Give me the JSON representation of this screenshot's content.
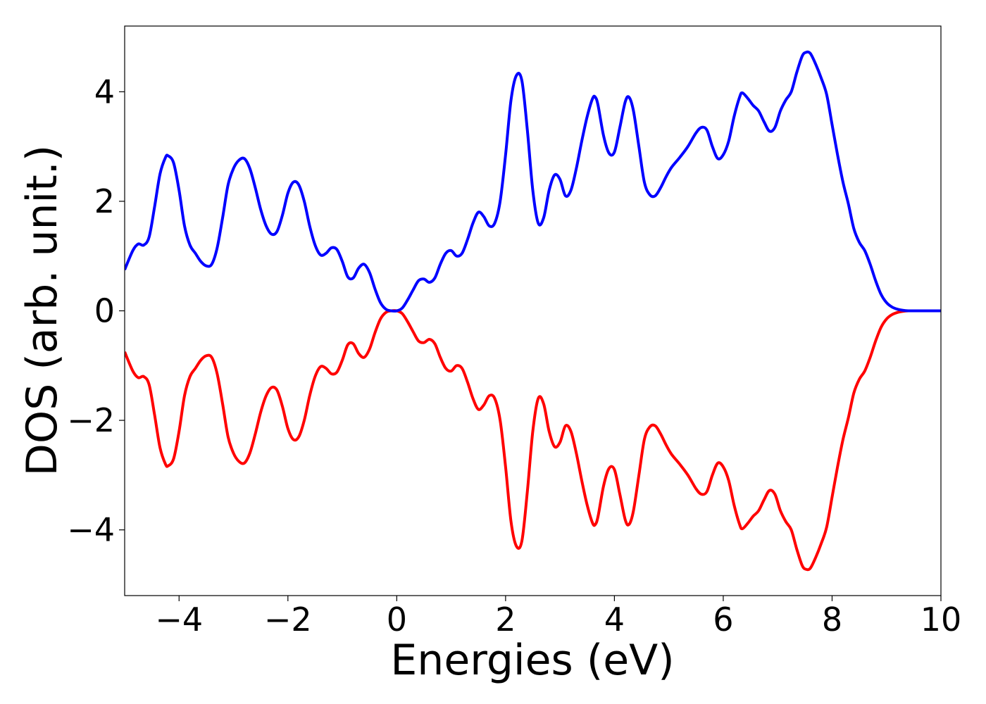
{
  "chart_data": {
    "type": "line",
    "title": "",
    "xlabel": "Energies (eV)",
    "ylabel": "DOS (arb. unit.)",
    "xlim": [
      -5,
      10
    ],
    "ylim": [
      -5.2,
      5.2
    ],
    "xticks": [
      -4,
      -2,
      0,
      2,
      4,
      6,
      8,
      10
    ],
    "yticks": [
      -4,
      -2,
      0,
      2,
      4
    ],
    "xtick_labels": [
      "−4",
      "−2",
      "0",
      "2",
      "4",
      "6",
      "8",
      "10"
    ],
    "ytick_labels": [
      "−4",
      "−2",
      "0",
      "2",
      "4"
    ],
    "grid": false,
    "legend": "none",
    "series": [
      {
        "color": "#0000ff",
        "x": [
          -5.0,
          -4.85,
          -4.75,
          -4.65,
          -4.55,
          -4.45,
          -4.35,
          -4.25,
          -4.2,
          -4.1,
          -4.0,
          -3.9,
          -3.8,
          -3.7,
          -3.6,
          -3.5,
          -3.4,
          -3.3,
          -3.2,
          -3.1,
          -3.0,
          -2.9,
          -2.8,
          -2.7,
          -2.6,
          -2.5,
          -2.4,
          -2.3,
          -2.2,
          -2.1,
          -2.0,
          -1.9,
          -1.8,
          -1.7,
          -1.6,
          -1.5,
          -1.4,
          -1.3,
          -1.2,
          -1.1,
          -1.0,
          -0.9,
          -0.8,
          -0.7,
          -0.6,
          -0.5,
          -0.4,
          -0.3,
          -0.2,
          -0.1,
          0.0,
          0.1,
          0.2,
          0.3,
          0.4,
          0.5,
          0.6,
          0.7,
          0.8,
          0.9,
          1.0,
          1.1,
          1.2,
          1.3,
          1.4,
          1.5,
          1.6,
          1.7,
          1.8,
          1.9,
          2.0,
          2.1,
          2.2,
          2.3,
          2.4,
          2.5,
          2.6,
          2.7,
          2.8,
          2.9,
          3.0,
          3.1,
          3.2,
          3.3,
          3.4,
          3.5,
          3.6,
          3.65,
          3.7,
          3.8,
          3.9,
          4.0,
          4.1,
          4.2,
          4.27,
          4.35,
          4.45,
          4.55,
          4.65,
          4.75,
          4.85,
          4.95,
          5.05,
          5.2,
          5.35,
          5.5,
          5.6,
          5.7,
          5.8,
          5.9,
          6.0,
          6.1,
          6.2,
          6.3,
          6.35,
          6.45,
          6.55,
          6.65,
          6.75,
          6.85,
          6.95,
          7.05,
          7.15,
          7.25,
          7.35,
          7.45,
          7.52,
          7.6,
          7.7,
          7.8,
          7.9,
          8.0,
          8.1,
          8.2,
          8.3,
          8.4,
          8.5,
          8.6,
          8.7,
          8.8,
          8.9,
          9.0,
          9.1,
          9.2,
          9.3,
          9.4,
          9.5,
          9.7,
          10.0
        ],
        "values": [
          0.75,
          1.1,
          1.22,
          1.2,
          1.35,
          1.9,
          2.5,
          2.8,
          2.83,
          2.7,
          2.2,
          1.55,
          1.2,
          1.05,
          0.9,
          0.82,
          0.85,
          1.15,
          1.7,
          2.3,
          2.6,
          2.75,
          2.78,
          2.6,
          2.25,
          1.85,
          1.55,
          1.4,
          1.45,
          1.75,
          2.15,
          2.35,
          2.3,
          2.0,
          1.55,
          1.2,
          1.02,
          1.05,
          1.15,
          1.12,
          0.9,
          0.62,
          0.6,
          0.78,
          0.85,
          0.7,
          0.4,
          0.15,
          0.03,
          0.0,
          0.0,
          0.05,
          0.2,
          0.38,
          0.55,
          0.58,
          0.52,
          0.6,
          0.85,
          1.05,
          1.1,
          1.0,
          1.05,
          1.3,
          1.6,
          1.8,
          1.72,
          1.55,
          1.6,
          2.0,
          2.85,
          3.85,
          4.3,
          4.2,
          3.3,
          2.2,
          1.6,
          1.7,
          2.2,
          2.48,
          2.4,
          2.1,
          2.2,
          2.6,
          3.1,
          3.55,
          3.88,
          3.9,
          3.75,
          3.2,
          2.88,
          2.9,
          3.35,
          3.82,
          3.9,
          3.65,
          3.0,
          2.35,
          2.12,
          2.1,
          2.25,
          2.45,
          2.62,
          2.8,
          3.0,
          3.25,
          3.35,
          3.3,
          3.0,
          2.78,
          2.85,
          3.1,
          3.55,
          3.9,
          3.98,
          3.88,
          3.75,
          3.65,
          3.45,
          3.28,
          3.35,
          3.65,
          3.85,
          4.0,
          4.35,
          4.65,
          4.72,
          4.7,
          4.5,
          4.25,
          3.95,
          3.4,
          2.85,
          2.35,
          1.95,
          1.5,
          1.25,
          1.1,
          0.85,
          0.55,
          0.3,
          0.15,
          0.07,
          0.03,
          0.01,
          0.0,
          0.0,
          0.0,
          0.0
        ]
      },
      {
        "color": "#ff0000",
        "x": [
          -5.0,
          -4.85,
          -4.75,
          -4.65,
          -4.55,
          -4.45,
          -4.35,
          -4.25,
          -4.2,
          -4.1,
          -4.0,
          -3.9,
          -3.8,
          -3.7,
          -3.6,
          -3.5,
          -3.4,
          -3.3,
          -3.2,
          -3.1,
          -3.0,
          -2.9,
          -2.8,
          -2.7,
          -2.6,
          -2.5,
          -2.4,
          -2.3,
          -2.2,
          -2.1,
          -2.0,
          -1.9,
          -1.8,
          -1.7,
          -1.6,
          -1.5,
          -1.4,
          -1.3,
          -1.2,
          -1.1,
          -1.0,
          -0.9,
          -0.8,
          -0.7,
          -0.6,
          -0.5,
          -0.4,
          -0.3,
          -0.2,
          -0.1,
          0.0,
          0.1,
          0.2,
          0.3,
          0.4,
          0.5,
          0.6,
          0.7,
          0.8,
          0.9,
          1.0,
          1.1,
          1.2,
          1.3,
          1.4,
          1.5,
          1.6,
          1.7,
          1.8,
          1.9,
          2.0,
          2.1,
          2.2,
          2.3,
          2.4,
          2.5,
          2.6,
          2.7,
          2.8,
          2.9,
          3.0,
          3.1,
          3.2,
          3.3,
          3.4,
          3.5,
          3.6,
          3.65,
          3.7,
          3.8,
          3.9,
          4.0,
          4.1,
          4.2,
          4.27,
          4.35,
          4.45,
          4.55,
          4.65,
          4.75,
          4.85,
          4.95,
          5.05,
          5.2,
          5.35,
          5.5,
          5.6,
          5.7,
          5.8,
          5.9,
          6.0,
          6.1,
          6.2,
          6.3,
          6.35,
          6.45,
          6.55,
          6.65,
          6.75,
          6.85,
          6.95,
          7.05,
          7.15,
          7.25,
          7.35,
          7.45,
          7.52,
          7.6,
          7.7,
          7.8,
          7.9,
          8.0,
          8.1,
          8.2,
          8.3,
          8.4,
          8.5,
          8.6,
          8.7,
          8.8,
          8.9,
          9.0,
          9.1,
          9.2,
          9.3,
          9.4,
          9.5,
          9.7,
          10.0
        ],
        "values": [
          -0.75,
          -1.1,
          -1.22,
          -1.2,
          -1.35,
          -1.9,
          -2.5,
          -2.8,
          -2.83,
          -2.7,
          -2.2,
          -1.55,
          -1.2,
          -1.05,
          -0.9,
          -0.82,
          -0.85,
          -1.15,
          -1.7,
          -2.3,
          -2.6,
          -2.75,
          -2.78,
          -2.6,
          -2.25,
          -1.85,
          -1.55,
          -1.4,
          -1.45,
          -1.75,
          -2.15,
          -2.35,
          -2.3,
          -2.0,
          -1.55,
          -1.2,
          -1.02,
          -1.05,
          -1.15,
          -1.12,
          -0.9,
          -0.62,
          -0.6,
          -0.78,
          -0.85,
          -0.7,
          -0.4,
          -0.15,
          -0.03,
          0.0,
          0.0,
          -0.05,
          -0.2,
          -0.38,
          -0.55,
          -0.58,
          -0.52,
          -0.6,
          -0.85,
          -1.05,
          -1.1,
          -1.0,
          -1.05,
          -1.3,
          -1.6,
          -1.8,
          -1.72,
          -1.55,
          -1.6,
          -2.0,
          -2.85,
          -3.85,
          -4.3,
          -4.2,
          -3.3,
          -2.2,
          -1.6,
          -1.7,
          -2.2,
          -2.48,
          -2.4,
          -2.1,
          -2.2,
          -2.6,
          -3.1,
          -3.55,
          -3.88,
          -3.9,
          -3.75,
          -3.2,
          -2.88,
          -2.9,
          -3.35,
          -3.82,
          -3.9,
          -3.65,
          -3.0,
          -2.35,
          -2.12,
          -2.1,
          -2.25,
          -2.45,
          -2.62,
          -2.8,
          -3.0,
          -3.25,
          -3.35,
          -3.3,
          -3.0,
          -2.78,
          -2.85,
          -3.1,
          -3.55,
          -3.9,
          -3.98,
          -3.88,
          -3.75,
          -3.65,
          -3.45,
          -3.28,
          -3.35,
          -3.65,
          -3.85,
          -4.0,
          -4.35,
          -4.65,
          -4.72,
          -4.7,
          -4.5,
          -4.25,
          -3.95,
          -3.4,
          -2.85,
          -2.35,
          -1.95,
          -1.5,
          -1.25,
          -1.1,
          -0.85,
          -0.55,
          -0.3,
          -0.15,
          -0.07,
          -0.03,
          -0.01,
          0.0,
          0.0,
          0.0,
          0.0
        ]
      }
    ]
  }
}
